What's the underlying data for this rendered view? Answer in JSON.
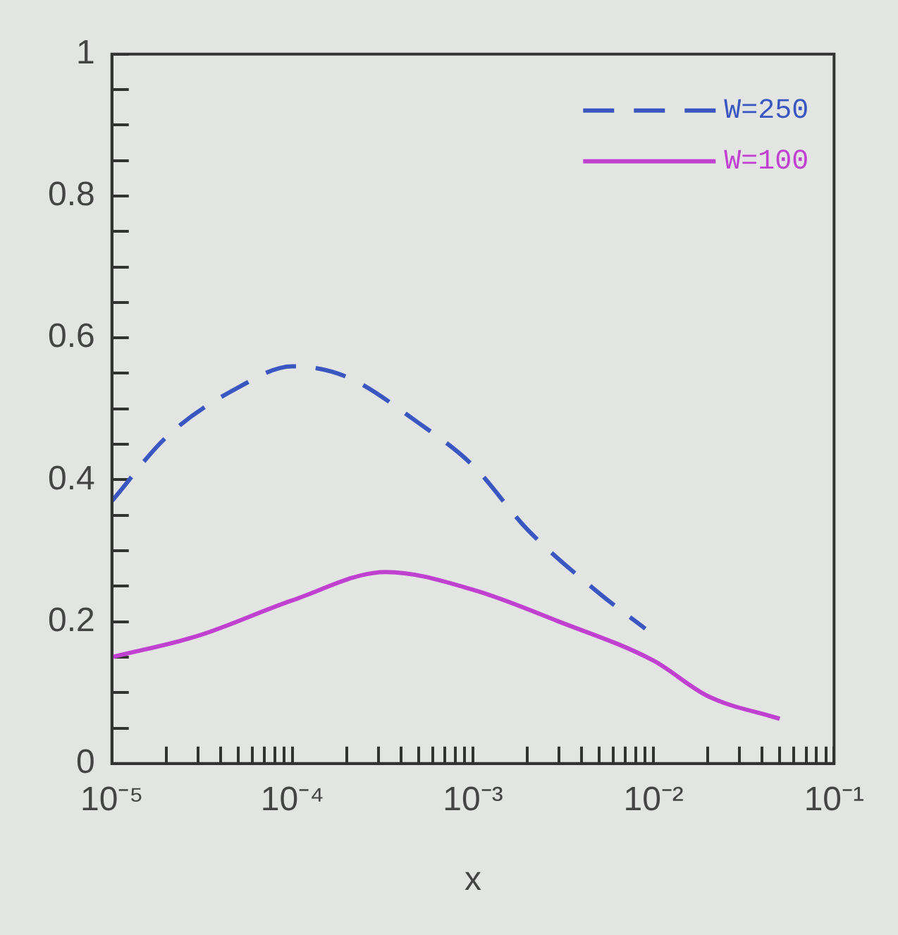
{
  "chart_data": {
    "type": "line",
    "xlabel": "x",
    "log": "x",
    "legend": "top right",
    "grid": false,
    "marker": "none",
    "xlim": [
      1e-05,
      0.1
    ],
    "ylim": [
      0,
      1
    ],
    "xticks": [
      {
        "value": 1e-05,
        "label": "10⁻⁵"
      },
      {
        "value": 2e-05,
        "label": null
      },
      {
        "value": 3e-05,
        "label": null
      },
      {
        "value": 4e-05,
        "label": null
      },
      {
        "value": 5e-05,
        "label": null
      },
      {
        "value": 6e-05,
        "label": null
      },
      {
        "value": 7e-05,
        "label": null
      },
      {
        "value": 8e-05,
        "label": null
      },
      {
        "value": 9e-05,
        "label": null
      },
      {
        "value": 0.0001,
        "label": "10⁻⁴"
      },
      {
        "value": 0.0002,
        "label": null
      },
      {
        "value": 0.0003,
        "label": null
      },
      {
        "value": 0.0004,
        "label": null
      },
      {
        "value": 0.0005,
        "label": null
      },
      {
        "value": 0.0006,
        "label": null
      },
      {
        "value": 0.0007,
        "label": null
      },
      {
        "value": 0.0008,
        "label": null
      },
      {
        "value": 0.0009,
        "label": null
      },
      {
        "value": 0.001,
        "label": "10⁻³"
      },
      {
        "value": 0.002,
        "label": null
      },
      {
        "value": 0.003,
        "label": null
      },
      {
        "value": 0.004,
        "label": null
      },
      {
        "value": 0.005,
        "label": null
      },
      {
        "value": 0.006,
        "label": null
      },
      {
        "value": 0.007,
        "label": null
      },
      {
        "value": 0.008,
        "label": null
      },
      {
        "value": 0.009,
        "label": null
      },
      {
        "value": 0.01,
        "label": "10⁻²"
      },
      {
        "value": 0.02,
        "label": null
      },
      {
        "value": 0.03,
        "label": null
      },
      {
        "value": 0.04,
        "label": null
      },
      {
        "value": 0.05,
        "label": null
      },
      {
        "value": 0.06,
        "label": null
      },
      {
        "value": 0.07,
        "label": null
      },
      {
        "value": 0.08,
        "label": null
      },
      {
        "value": 0.09,
        "label": null
      },
      {
        "value": 0.1,
        "label": "10⁻¹"
      }
    ],
    "yticks": [
      0,
      {
        "value": 0.05,
        "label": null
      },
      {
        "value": 0.1,
        "label": null
      },
      {
        "value": 0.15,
        "label": null
      },
      0.2,
      {
        "value": 0.25,
        "label": null
      },
      {
        "value": 0.3,
        "label": null
      },
      {
        "value": 0.35,
        "label": null
      },
      0.4,
      {
        "value": 0.45,
        "label": null
      },
      {
        "value": 0.5,
        "label": null
      },
      {
        "value": 0.55,
        "label": null
      },
      0.6,
      {
        "value": 0.65,
        "label": null
      },
      {
        "value": 0.7,
        "label": null
      },
      {
        "value": 0.75,
        "label": null
      },
      0.8,
      {
        "value": 0.85,
        "label": null
      },
      {
        "value": 0.9,
        "label": null
      },
      {
        "value": 0.95,
        "label": null
      },
      1
    ],
    "series": [
      {
        "name": "W=250",
        "color": "#3a56c0",
        "line_style": "dashed",
        "x": [
          1e-05,
          2e-05,
          5e-05,
          0.0001,
          0.0002,
          0.0005,
          0.001,
          0.002,
          0.005,
          0.009
        ],
        "values": [
          0.37,
          0.46,
          0.53,
          0.56,
          0.545,
          0.48,
          0.42,
          0.33,
          0.24,
          0.19
        ]
      },
      {
        "name": "W=100",
        "color": "#c040d0",
        "line_style": "solid",
        "x": [
          1e-05,
          3e-05,
          0.0001,
          0.00033,
          0.001,
          0.003,
          0.01,
          0.02,
          0.05
        ],
        "values": [
          0.15,
          0.18,
          0.23,
          0.27,
          0.245,
          0.2,
          0.145,
          0.095,
          0.063
        ]
      }
    ]
  }
}
